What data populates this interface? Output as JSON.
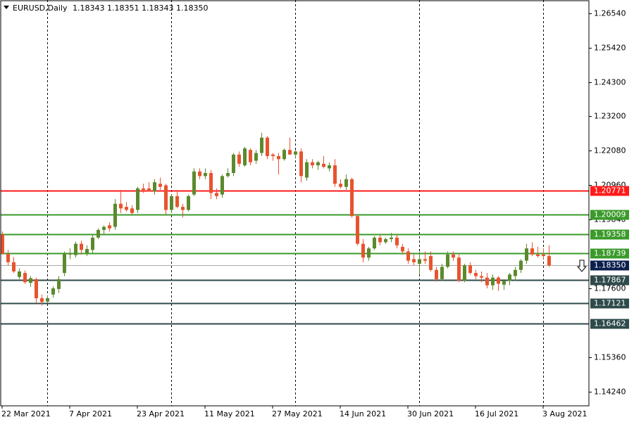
{
  "chart_data": {
    "type": "candlestick",
    "symbol": "EURUSD,Daily",
    "quote": "1.18343 1.18351 1.18343 1.18350",
    "categories": [
      "22 Mar 2021",
      null,
      null,
      null,
      null,
      null,
      null,
      null,
      null,
      null,
      null,
      null,
      "7 Apr 2021",
      null,
      null,
      null,
      null,
      null,
      null,
      null,
      null,
      null,
      null,
      null,
      "23 Apr 2021",
      null,
      null,
      null,
      null,
      null,
      null,
      null,
      null,
      null,
      null,
      null,
      "11 May 2021",
      null,
      null,
      null,
      null,
      null,
      null,
      null,
      null,
      null,
      null,
      null,
      "27 May 2021",
      null,
      null,
      null,
      null,
      null,
      null,
      null,
      null,
      null,
      null,
      null,
      "14 Jun 2021",
      null,
      null,
      null,
      null,
      null,
      null,
      null,
      null,
      null,
      null,
      null,
      "30 Jun 2021",
      null,
      null,
      null,
      null,
      null,
      null,
      null,
      null,
      null,
      null,
      null,
      "16 Jul 2021",
      null,
      null,
      null,
      null,
      null,
      null,
      null,
      null,
      null,
      null,
      null,
      "3 Aug 2021",
      null
    ],
    "open": [
      1.1935,
      1.1872,
      1.1845,
      1.1797,
      1.181,
      1.1778,
      1.179,
      1.1728,
      1.1717,
      1.174,
      1.1758,
      1.181,
      1.187,
      1.1868,
      1.1905,
      1.1875,
      1.1885,
      1.1925,
      1.195,
      1.1965,
      1.196,
      1.2035,
      1.2025,
      1.202,
      1.2015,
      1.2085,
      1.2085,
      1.2075,
      1.21,
      1.2095,
      1.2015,
      1.206,
      1.2025,
      1.2015,
      1.2065,
      1.214,
      1.2125,
      1.2135,
      1.207,
      1.2065,
      1.2125,
      1.2135,
      1.2195,
      1.216,
      1.221,
      1.2175,
      1.22,
      1.225,
      1.2195,
      1.219,
      1.218,
      1.221,
      1.2195,
      1.2205,
      1.212,
      1.217,
      1.216,
      1.2165,
      1.215,
      1.216,
      1.21,
      1.209,
      1.2115,
      1.1995,
      1.1905,
      1.186,
      1.189,
      1.1925,
      1.191,
      1.192,
      1.1925,
      1.1895,
      1.188,
      1.1855,
      1.184,
      1.1855,
      1.1865,
      1.182,
      1.179,
      1.183,
      1.187,
      1.186,
      1.1785,
      1.1835,
      1.181,
      1.18,
      1.1795,
      1.177,
      1.1795,
      1.1772,
      1.1785,
      1.18,
      1.182,
      1.185,
      1.189,
      1.187,
      1.187,
      1.1865
    ],
    "high": [
      1.1945,
      1.1885,
      1.1862,
      1.1825,
      1.1818,
      1.18,
      1.1795,
      1.174,
      1.1738,
      1.1766,
      1.18,
      1.188,
      1.189,
      1.1912,
      1.1915,
      1.19,
      1.1935,
      1.1955,
      1.1965,
      1.1975,
      1.205,
      1.208,
      1.204,
      1.203,
      1.209,
      1.21,
      1.2105,
      1.2115,
      1.212,
      1.21,
      1.2065,
      1.208,
      1.2035,
      1.2065,
      1.215,
      1.215,
      1.215,
      1.2145,
      1.2085,
      1.213,
      1.215,
      1.22,
      1.2205,
      1.222,
      1.2215,
      1.221,
      1.2266,
      1.2255,
      1.22,
      1.22,
      1.2215,
      1.225,
      1.221,
      1.2215,
      1.218,
      1.218,
      1.2175,
      1.219,
      1.217,
      1.218,
      1.2115,
      1.213,
      1.212,
      1.2,
      1.192,
      1.1895,
      1.193,
      1.1935,
      1.1925,
      1.194,
      1.1935,
      1.1905,
      1.189,
      1.187,
      1.188,
      1.188,
      1.188,
      1.183,
      1.184,
      1.188,
      1.188,
      1.187,
      1.184,
      1.1845,
      1.182,
      1.1815,
      1.181,
      1.1805,
      1.18,
      1.179,
      1.181,
      1.183,
      1.1855,
      1.1905,
      1.191,
      1.1895,
      1.189,
      1.19
    ],
    "low": [
      1.187,
      1.1835,
      1.181,
      1.179,
      1.1775,
      1.1765,
      1.1712,
      1.1704,
      1.1712,
      1.173,
      1.1745,
      1.18,
      1.1855,
      1.186,
      1.187,
      1.1865,
      1.1875,
      1.192,
      1.1935,
      1.1945,
      1.195,
      1.2005,
      1.201,
      1.2,
      1.2005,
      1.207,
      1.2075,
      1.2065,
      1.208,
      1.2,
      1.2005,
      1.202,
      1.199,
      1.201,
      1.206,
      1.2115,
      1.2115,
      1.205,
      1.205,
      1.2055,
      1.212,
      1.2125,
      1.2155,
      1.2155,
      1.216,
      1.2165,
      1.219,
      1.218,
      1.2175,
      1.213,
      1.2175,
      1.2195,
      1.2185,
      1.2105,
      1.211,
      1.215,
      1.2145,
      1.215,
      1.214,
      1.209,
      1.2085,
      1.208,
      1.199,
      1.19,
      1.1845,
      1.185,
      1.1885,
      1.19,
      1.1905,
      1.191,
      1.189,
      1.187,
      1.184,
      1.1835,
      1.1805,
      1.184,
      1.1815,
      1.1782,
      1.1785,
      1.1825,
      1.185,
      1.178,
      1.178,
      1.1805,
      1.179,
      1.178,
      1.176,
      1.1755,
      1.1752,
      1.1755,
      1.177,
      1.1785,
      1.181,
      1.184,
      1.1865,
      1.186,
      1.1855,
      1.183
    ],
    "close": [
      1.1872,
      1.1845,
      1.1815,
      1.1815,
      1.178,
      1.1793,
      1.1728,
      1.1716,
      1.1728,
      1.176,
      1.179,
      1.1873,
      1.1875,
      1.1905,
      1.1885,
      1.1888,
      1.1925,
      1.195,
      1.196,
      1.1955,
      1.2035,
      1.202,
      1.2015,
      1.2005,
      1.2085,
      1.208,
      1.2075,
      1.2105,
      1.209,
      1.2015,
      1.206,
      1.2025,
      1.2015,
      1.206,
      1.214,
      1.2125,
      1.2135,
      1.207,
      1.206,
      1.2125,
      1.2135,
      1.2195,
      1.2165,
      1.2215,
      1.217,
      1.22,
      1.225,
      1.219,
      1.219,
      1.218,
      1.221,
      1.2195,
      1.2205,
      1.2125,
      1.217,
      1.216,
      1.217,
      1.2155,
      1.216,
      1.21,
      1.209,
      1.2115,
      1.1995,
      1.1905,
      1.186,
      1.189,
      1.1925,
      1.191,
      1.192,
      1.1925,
      1.19,
      1.188,
      1.185,
      1.1845,
      1.1855,
      1.185,
      1.182,
      1.179,
      1.183,
      1.187,
      1.186,
      1.1785,
      1.1835,
      1.181,
      1.18,
      1.1795,
      1.177,
      1.1795,
      1.1775,
      1.1785,
      1.1805,
      1.182,
      1.185,
      1.189,
      1.187,
      1.1865,
      1.1865,
      1.1835
    ],
    "up_color": "#5b8a2e",
    "down_color": "#e8532e",
    "ylim": [
      1.13782,
      1.26974
    ],
    "yticks": [
      {
        "value": 1.2654,
        "label": "1.26540"
      },
      {
        "value": 1.2542,
        "label": "1.25420"
      },
      {
        "value": 1.243,
        "label": "1.24300"
      },
      {
        "value": 1.232,
        "label": "1.23200"
      },
      {
        "value": 1.2208,
        "label": "1.22080"
      },
      {
        "value": 1.2096,
        "label": "1.20960"
      },
      {
        "value": 1.1984,
        "label": "1.19840"
      },
      {
        "value": 1.176,
        "label": "1.17600"
      },
      {
        "value": 1.1536,
        "label": "1.15360"
      },
      {
        "value": 1.1424,
        "label": "1.14240"
      }
    ],
    "grid": true,
    "levels": [
      {
        "value": 1.20771,
        "color": "#ff1a1a"
      },
      {
        "value": 1.20009,
        "color": "#3a9a2a"
      },
      {
        "value": 1.19358,
        "color": "#3a9a2a"
      },
      {
        "value": 1.18739,
        "color": "#3a9a2a"
      },
      {
        "value": 1.17867,
        "color": "#2f4a4a"
      },
      {
        "value": 1.17121,
        "color": "#2f4a4a"
      },
      {
        "value": 1.16462,
        "color": "#2f4a4a"
      }
    ],
    "current_price": {
      "value": 1.1835,
      "label": "1.18350",
      "color": "#0b1f4d"
    }
  }
}
